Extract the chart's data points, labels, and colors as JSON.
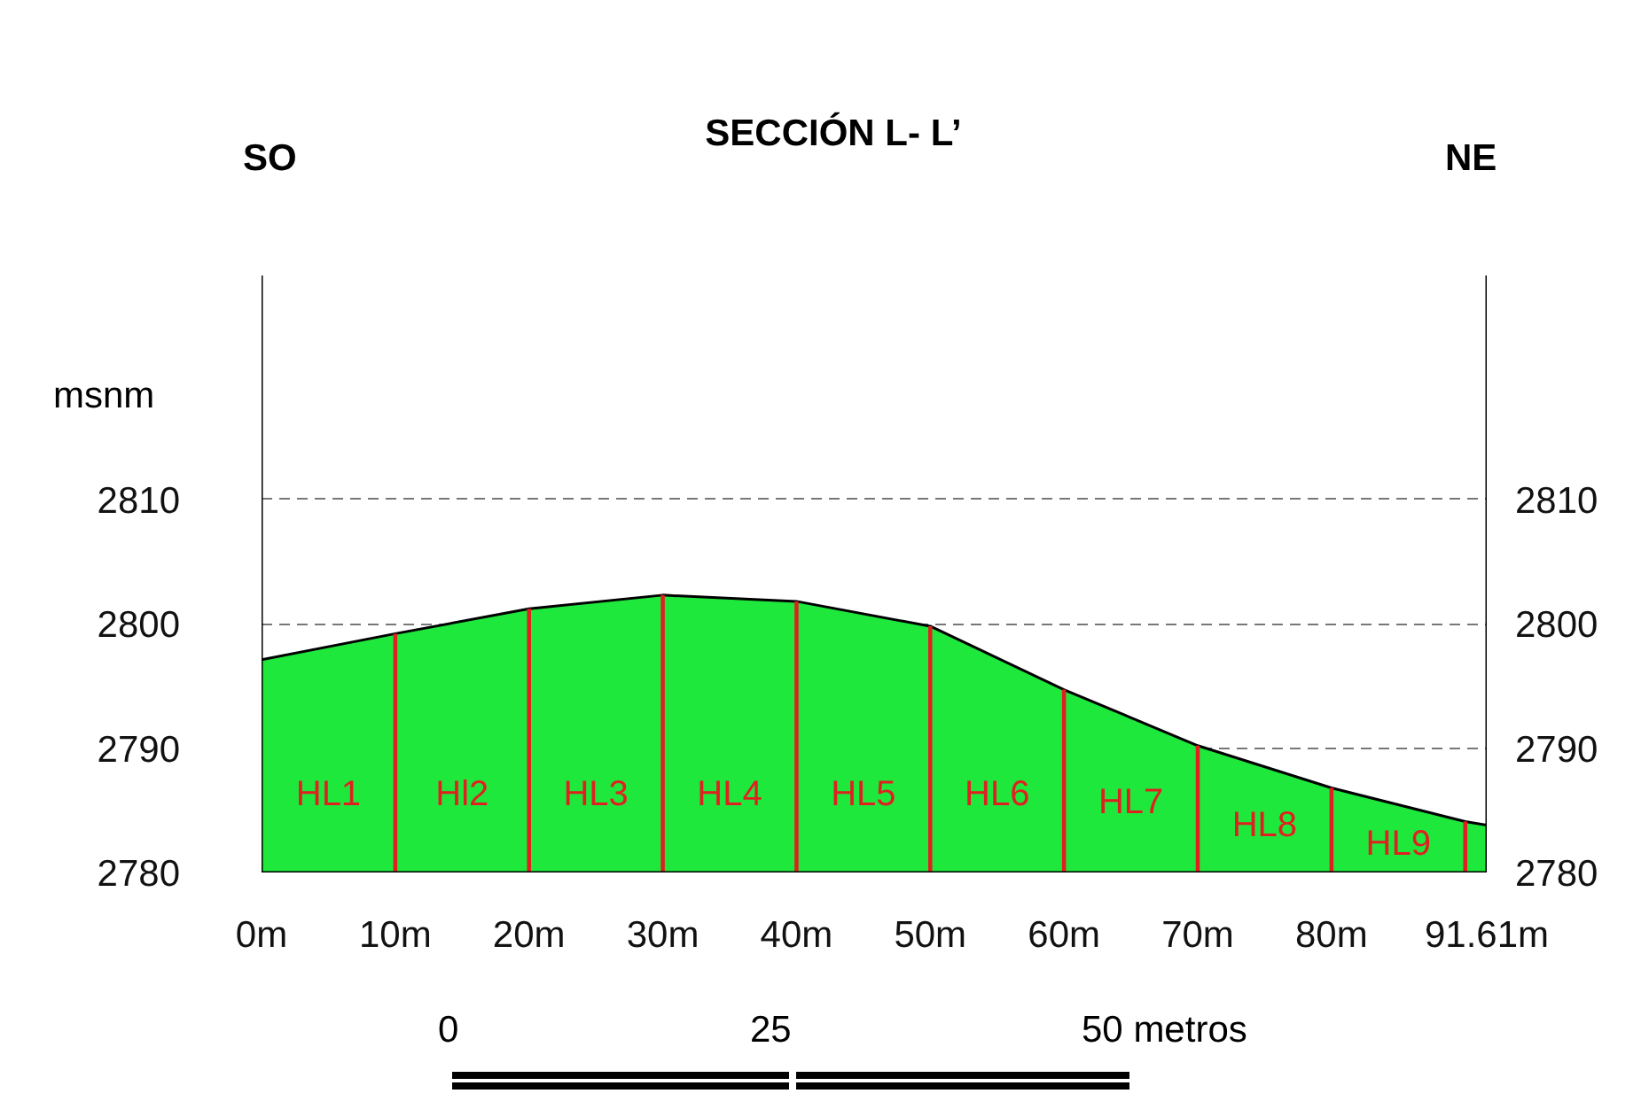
{
  "chart_data": {
    "type": "area",
    "title": "SECCIÓN L- L’",
    "ylabel": "msnm",
    "x": [
      0,
      10,
      20,
      30,
      40,
      50,
      60,
      70,
      80,
      90,
      91.61
    ],
    "series": [
      {
        "color": "#1ee83c",
        "values": [
          2797.1,
          2799.2,
          2801.2,
          2802.3,
          2801.8,
          2799.8,
          2794.7,
          2790.2,
          2786.8,
          2784.1,
          2783.8
        ]
      },
      {
        "type": "bar",
        "color": "#e02020",
        "x": [
          10,
          20,
          30,
          40,
          50,
          60,
          70,
          80,
          90
        ],
        "values": [
          2799.2,
          2801.2,
          2802.3,
          2801.8,
          2799.8,
          2794.7,
          2790.2,
          2786.8,
          2784.1
        ]
      }
    ],
    "xlim": [
      0,
      91.61
    ],
    "ylim": [
      2780,
      2828
    ],
    "y2lim": [
      2780,
      2828
    ],
    "xticks": [
      {
        "value": 0,
        "label": "0m"
      },
      {
        "value": 10,
        "label": "10m"
      },
      {
        "value": 20,
        "label": "20m"
      },
      {
        "value": 30,
        "label": "30m"
      },
      {
        "value": 40,
        "label": "40m"
      },
      {
        "value": 50,
        "label": "50m"
      },
      {
        "value": 60,
        "label": "60m"
      },
      {
        "value": 70,
        "label": "70m"
      },
      {
        "value": 80,
        "label": "80m"
      },
      {
        "value": 91.61,
        "label": "91.61m"
      }
    ],
    "yticks": [
      2780,
      2790,
      2800,
      2810
    ],
    "y2ticks": [
      2780,
      2790,
      2800,
      2810
    ],
    "grid": "y",
    "annotations": [
      "HL1",
      "Hl2",
      "HL3",
      "HL4",
      "HL5",
      "HL6",
      "HL7",
      "HL8",
      "HL9",
      "SO",
      "NE",
      "0",
      "25",
      "50 metros"
    ]
  }
}
